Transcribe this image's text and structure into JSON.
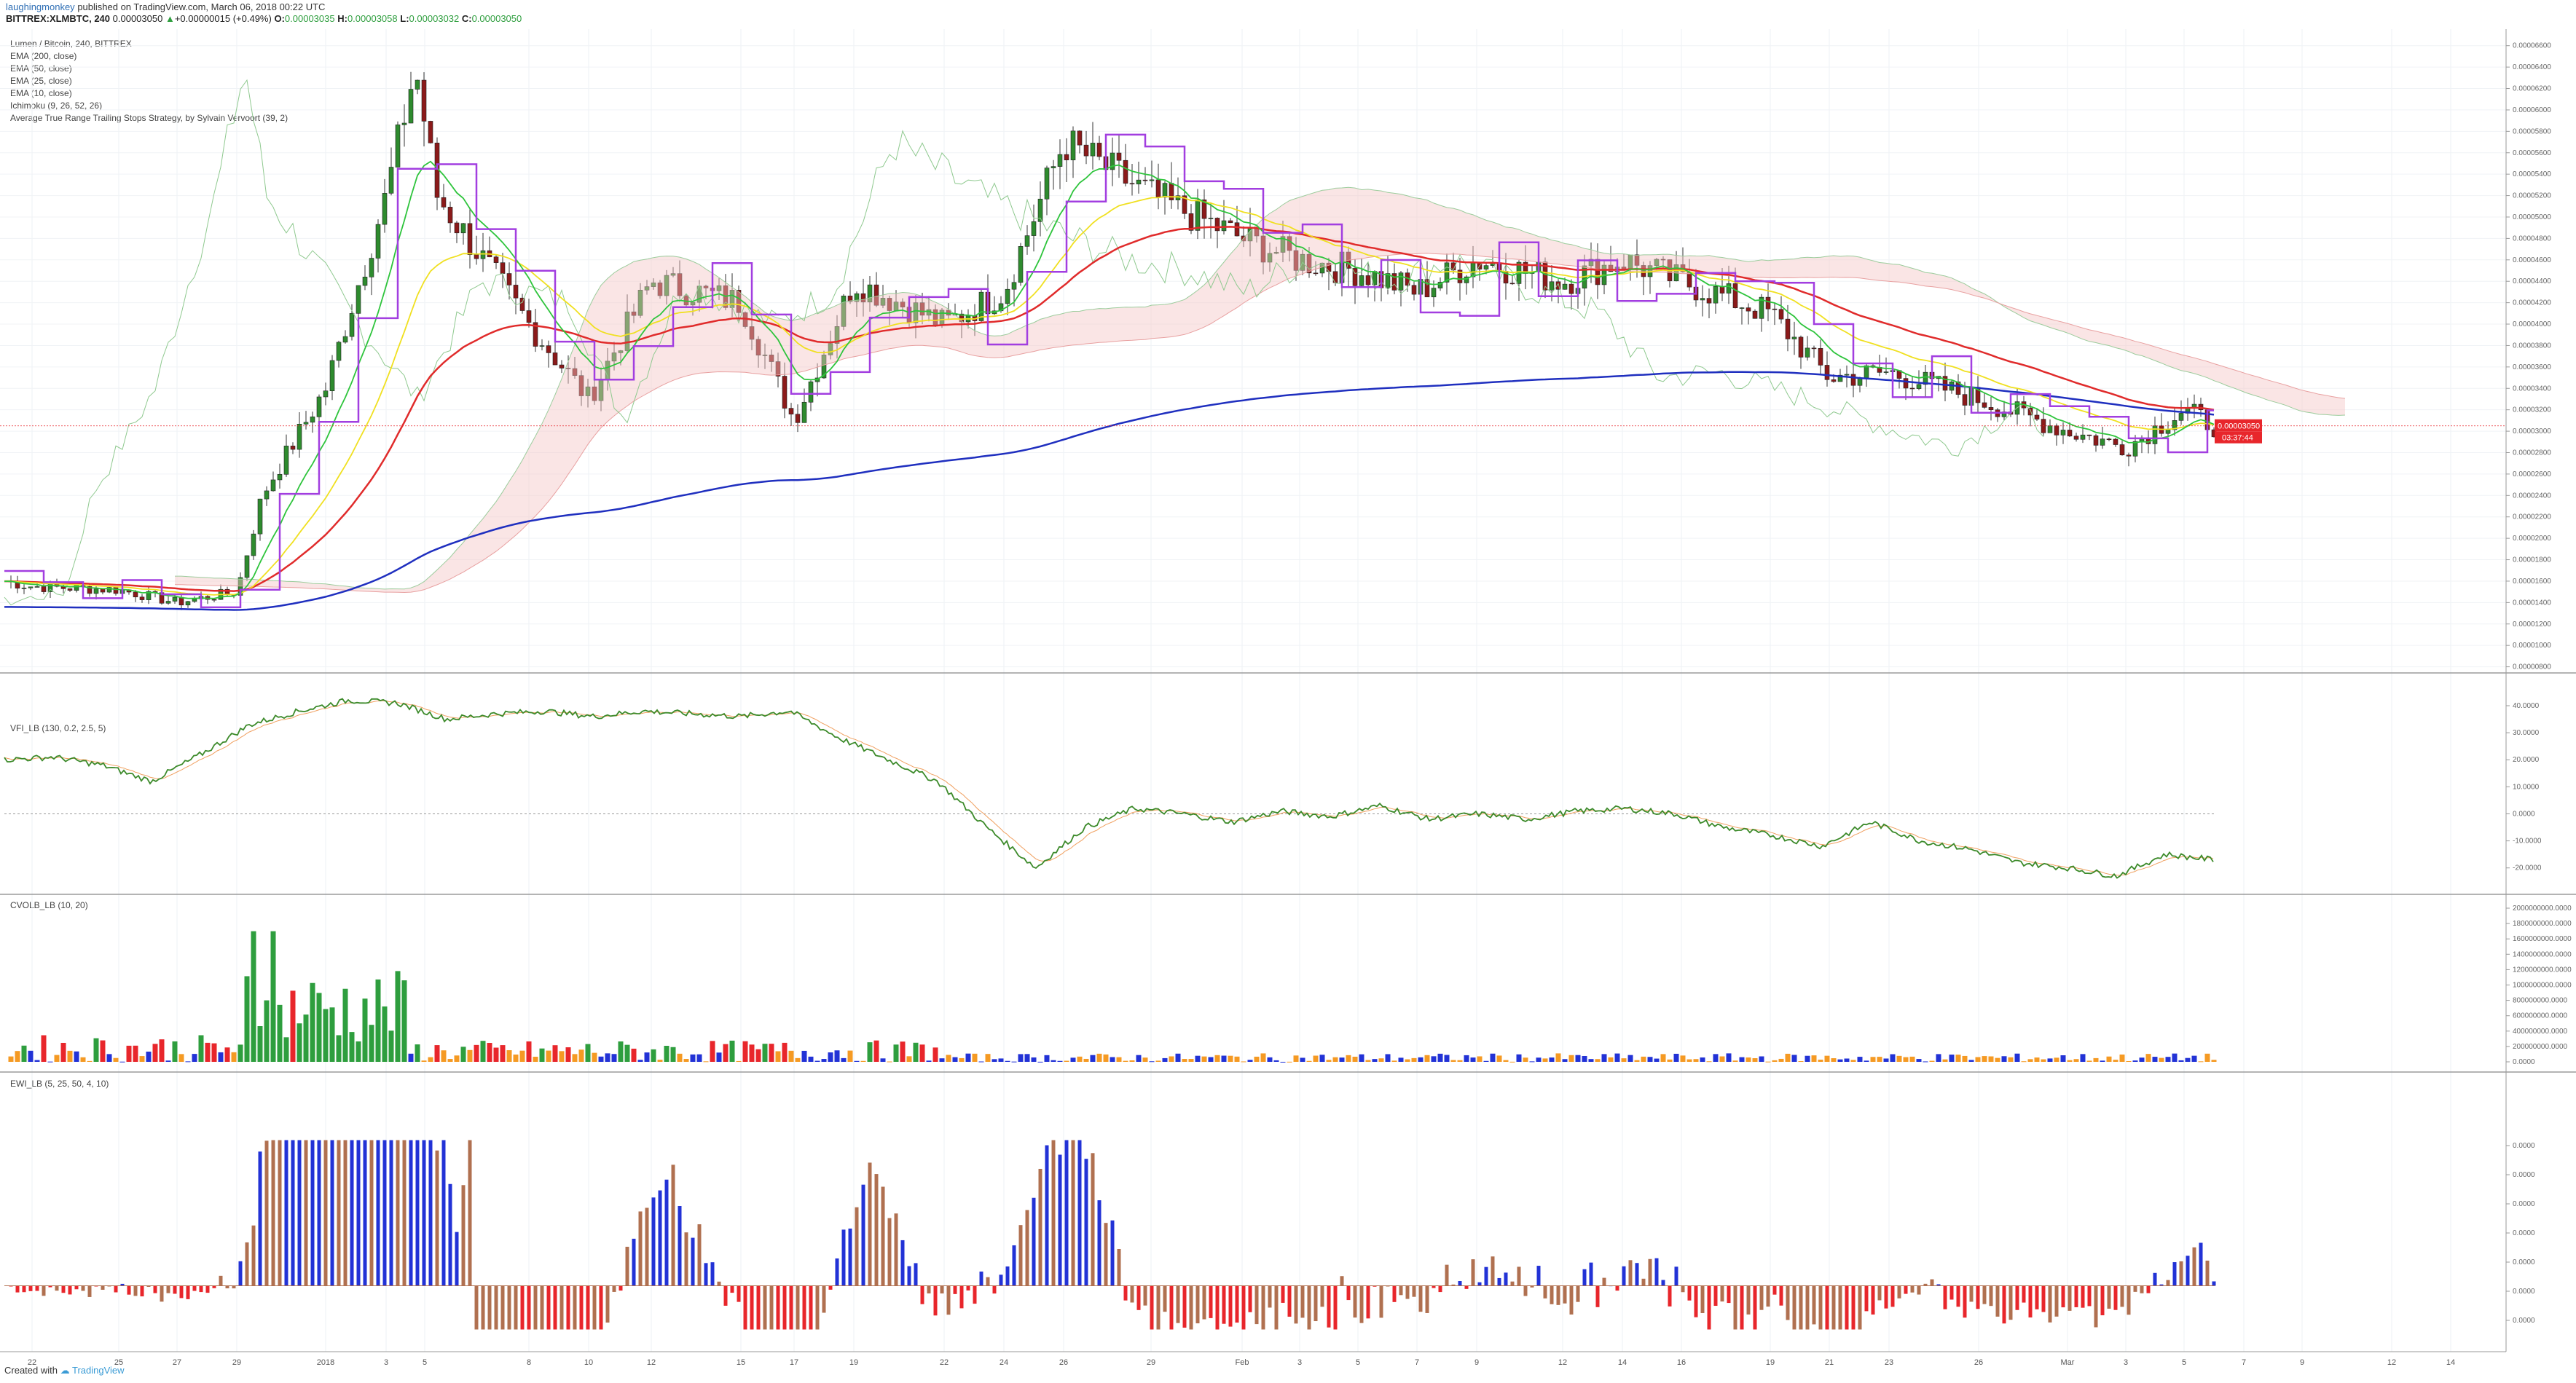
{
  "header": {
    "author": "laughingmonkey",
    "published": "published on TradingView.com, March 06, 2018 00:22 UTC",
    "symbol": "BITTREX:XLMBTC, 240",
    "last": "0.00003050",
    "change": "+0.00000015 (+0.49%)",
    "open_label": "O:",
    "open": "0.00003035",
    "high_label": "H:",
    "high": "0.00003058",
    "low_label": "L:",
    "low": "0.00003032",
    "close_label": "C:",
    "close": "0.00003050"
  },
  "legend": {
    "title": "Lumen / Bitcoin, 240, BITTREX",
    "items": [
      "EMA (200, close)",
      "EMA (50, close)",
      "EMA (25, close)",
      "EMA (10, close)",
      "Ichimoku (9, 26, 52, 26)",
      "Average True Range Trailing Stops Strategy, by Sylvain Vervoort (39, 2)"
    ]
  },
  "price_tag": {
    "value": "0.00003050",
    "countdown": "03:37:44",
    "color": "#e8262b"
  },
  "panes": {
    "vfi": {
      "title": "VFI_LB (130, 0.2, 2.5, 5)"
    },
    "cvol": {
      "title": "CVOLB_LB (10, 20)"
    },
    "ewi": {
      "title": "EWI_LB (5, 25, 50, 4, 10)"
    }
  },
  "footer": {
    "created": "Created with",
    "brand": "TradingView"
  },
  "chart_data": [
    {
      "type": "candlestick",
      "pane": "price",
      "y_ticks": [
        "0.00006600",
        "0.00006400",
        "0.00006200",
        "0.00006000",
        "0.00005800",
        "0.00005600",
        "0.00005400",
        "0.00005200",
        "0.00005000",
        "0.00004800",
        "0.00004600",
        "0.00004400",
        "0.00004200",
        "0.00004000",
        "0.00003800",
        "0.00003600",
        "0.00003400",
        "0.00003200",
        "0.00003000",
        "0.00002800",
        "0.00002600",
        "0.00002400",
        "0.00002200",
        "0.00002000",
        "0.00001800",
        "0.00001600",
        "0.00001400",
        "0.00001200",
        "0.00001000",
        "0.00000800"
      ],
      "ylim": [
        7.7e-06,
        6.7e-05
      ],
      "x_ticks": [
        "22",
        "25",
        "27",
        "29",
        "2018",
        "3",
        "5",
        "8",
        "10",
        "12",
        "15",
        "17",
        "19",
        "22",
        "24",
        "26",
        "29",
        "Feb",
        "3",
        "5",
        "7",
        "9",
        "12",
        "14",
        "16",
        "19",
        "21",
        "23",
        "26",
        "Mar",
        "3",
        "5",
        "7",
        "9",
        "12",
        "14"
      ],
      "close_approx": [
        {
          "date": "Dec 22",
          "close": 1.55e-05
        },
        {
          "date": "Dec 25",
          "close": 1.52e-05
        },
        {
          "date": "Dec 27",
          "close": 1.4e-05
        },
        {
          "date": "Dec 29",
          "close": 1.5e-05
        },
        {
          "date": "Dec 30",
          "close": 2.4e-05
        },
        {
          "date": "Jan 1",
          "close": 3.4e-05
        },
        {
          "date": "Jan 3",
          "close": 5.2e-05
        },
        {
          "date": "Jan 4",
          "close": 6.4e-05
        },
        {
          "date": "Jan 5",
          "close": 5.2e-05
        },
        {
          "date": "Jan 8",
          "close": 4e-05
        },
        {
          "date": "Jan 10",
          "close": 3.3e-05
        },
        {
          "date": "Jan 12",
          "close": 4.4e-05
        },
        {
          "date": "Jan 15",
          "close": 4.2e-05
        },
        {
          "date": "Jan 17",
          "close": 3.1e-05
        },
        {
          "date": "Jan 19",
          "close": 4.4e-05
        },
        {
          "date": "Jan 22",
          "close": 4e-05
        },
        {
          "date": "Jan 24",
          "close": 4.3e-05
        },
        {
          "date": "Jan 26",
          "close": 5.7e-05
        },
        {
          "date": "Jan 29",
          "close": 5.2e-05
        },
        {
          "date": "Feb 1",
          "close": 4.8e-05
        },
        {
          "date": "Feb 3",
          "close": 4.6e-05
        },
        {
          "date": "Feb 5",
          "close": 4.5e-05
        },
        {
          "date": "Feb 7",
          "close": 4.3e-05
        },
        {
          "date": "Feb 9",
          "close": 4.6e-05
        },
        {
          "date": "Feb 12",
          "close": 4.4e-05
        },
        {
          "date": "Feb 14",
          "close": 4.6e-05
        },
        {
          "date": "Feb 16",
          "close": 4.4e-05
        },
        {
          "date": "Feb 19",
          "close": 4.1e-05
        },
        {
          "date": "Feb 21",
          "close": 3.5e-05
        },
        {
          "date": "Feb 23",
          "close": 3.55e-05
        },
        {
          "date": "Feb 26",
          "close": 3.3e-05
        },
        {
          "date": "Mar 1",
          "close": 3e-05
        },
        {
          "date": "Mar 3",
          "close": 2.85e-05
        },
        {
          "date": "Mar 5",
          "close": 3.2e-05
        },
        {
          "date": "Mar 6",
          "close": 3.05e-05
        }
      ],
      "series": [
        {
          "name": "EMA (200, close)",
          "color": "#1f2fbf"
        },
        {
          "name": "EMA (50, close)",
          "color": "#e02b2b"
        },
        {
          "name": "EMA (25, close)",
          "color": "#f0e020"
        },
        {
          "name": "EMA (10, close)",
          "color": "#2ec43c"
        },
        {
          "name": "Ichimoku (9, 26, 52, 26)",
          "color": "#6fbf6f"
        },
        {
          "name": "Average True Range Trailing Stops Strategy, by Sylvain Vervoort (39, 2)",
          "color": "#a23ee0"
        }
      ]
    },
    {
      "type": "line",
      "pane": "vfi",
      "y_ticks": [
        "40.0000",
        "30.0000",
        "20.0000",
        "10.0000",
        "0.0000",
        "-10.0000",
        "-20.0000"
      ],
      "ylim": [
        -26,
        47
      ],
      "values_approx": [
        20,
        21,
        18,
        12,
        22,
        33,
        38,
        42,
        41,
        35,
        37,
        38,
        36,
        38,
        37,
        36,
        38,
        28,
        20,
        12,
        -5,
        -20,
        -5,
        2,
        0,
        -3,
        1,
        -1,
        3,
        -2,
        0,
        -2,
        1,
        2,
        0,
        -5,
        -8,
        -12,
        -3,
        -10,
        -13,
        -18,
        -20,
        -23,
        -15,
        -17
      ]
    },
    {
      "type": "bar",
      "pane": "cvol",
      "y_ticks": [
        "2000000000.0000",
        "1800000000.0000",
        "1600000000.0000",
        "1400000000.0000",
        "1200000000.0000",
        "1000000000.0000",
        "800000000.0000",
        "600000000.0000",
        "400000000.0000",
        "200000000.0000",
        "0.0000"
      ],
      "ylim": [
        0,
        2000000000
      ],
      "colors": {
        "up_high": "#2e9e3e",
        "down_high": "#e8262b",
        "up_low": "#2232d6",
        "down_low": "#f59a23"
      }
    },
    {
      "type": "bar",
      "pane": "ewi",
      "y_ticks": [
        "0.0000",
        "0.0000",
        "0.0000",
        "0.0000",
        "0.0000",
        "0.0000",
        "0.0000"
      ],
      "colors": {
        "blue": "#2232d6",
        "red": "#e8262b",
        "brown": "#b07050"
      }
    }
  ]
}
